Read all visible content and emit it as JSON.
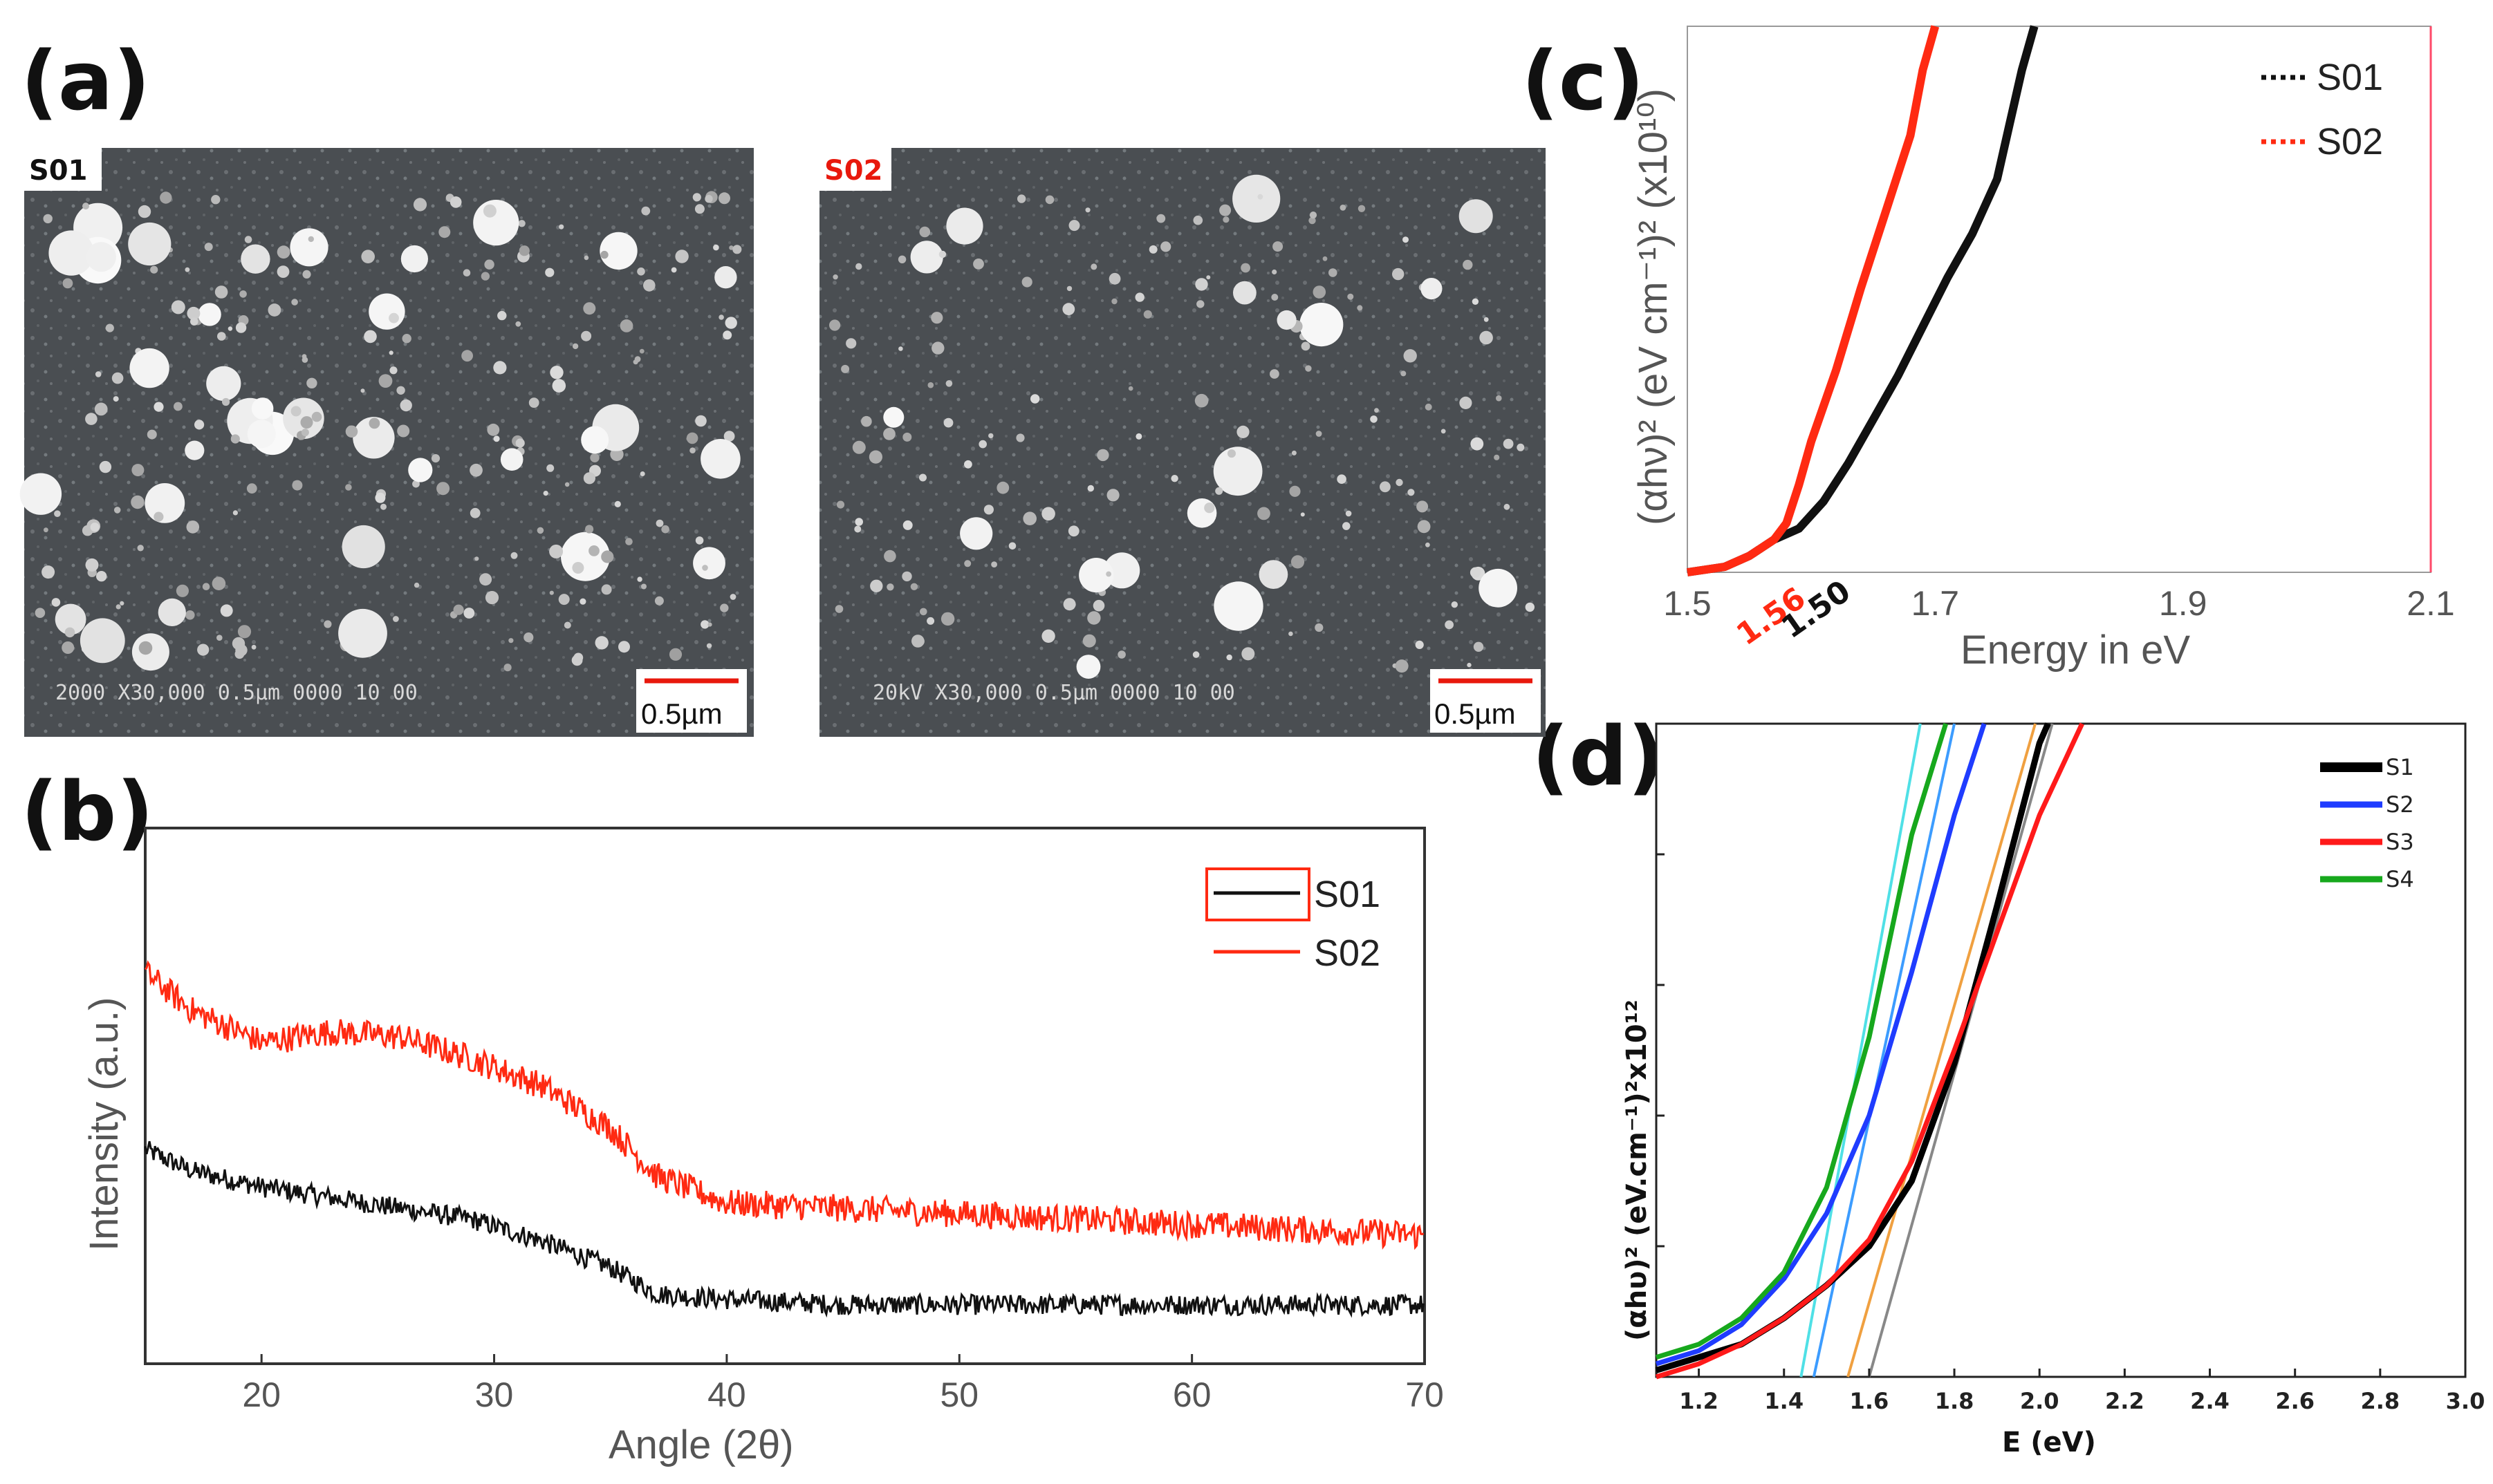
{
  "figure": {
    "panels": {
      "a": "(a)",
      "b": "(b)",
      "c": "(c)",
      "d": "(d)"
    }
  },
  "sem": {
    "left": {
      "tag": "S01",
      "info": "2000   X30,000   0.5µm   0000 10 00",
      "scale": "0.5µm"
    },
    "right": {
      "tag": "S02",
      "info": "20kV   X30,000   0.5µm   0000 10 00",
      "scale": "0.5µm"
    }
  },
  "chart_data": [
    {
      "panel": "b",
      "type": "line",
      "title": "",
      "xlabel": "Angle (2θ)",
      "ylabel": "Intensity (a.u.)",
      "xlim": [
        15,
        70
      ],
      "ylim": [
        0,
        100
      ],
      "xticks": [
        20,
        30,
        40,
        50,
        60,
        70
      ],
      "legend": "top-right",
      "series": [
        {
          "name": "S01",
          "color": "#111111",
          "x": [
            15,
            17,
            20,
            23,
            26,
            29,
            32,
            35,
            37,
            40,
            45,
            50,
            55,
            60,
            65,
            70
          ],
          "y": [
            40,
            36,
            33,
            31,
            29,
            27,
            23,
            18,
            13,
            12,
            11,
            11,
            11,
            11,
            11,
            11
          ]
        },
        {
          "name": "S02",
          "color": "#ff2a12",
          "x": [
            15,
            17,
            20,
            23,
            26,
            29,
            32,
            35,
            37,
            40,
            45,
            50,
            55,
            60,
            65,
            70
          ],
          "y": [
            73,
            66,
            60,
            62,
            61,
            57,
            52,
            44,
            35,
            30,
            29,
            28,
            27,
            26,
            25,
            24
          ]
        }
      ]
    },
    {
      "panel": "c",
      "type": "line",
      "title": "",
      "xlabel": "Energy in eV",
      "ylabel": "(αhν)² (eV cm⁻¹)²  (x10¹⁰)",
      "xlim": [
        1.5,
        2.1
      ],
      "ylim": [
        0,
        100
      ],
      "xticks": [
        "1.5",
        "1.7",
        "1.9",
        "2.1"
      ],
      "legend": "top-right",
      "bandgap_labels": [
        {
          "text": "1.56",
          "color": "#ff2a12"
        },
        {
          "text": "1.50",
          "color": "#111111"
        }
      ],
      "series": [
        {
          "name": "S01",
          "color": "#111111",
          "x": [
            1.5,
            1.53,
            1.55,
            1.57,
            1.59,
            1.61,
            1.63,
            1.65,
            1.67,
            1.69,
            1.71,
            1.73,
            1.75,
            1.76,
            1.77,
            1.78
          ],
          "y": [
            0,
            1,
            3,
            6,
            8,
            13,
            20,
            28,
            36,
            45,
            54,
            62,
            72,
            82,
            92,
            100
          ]
        },
        {
          "name": "S02",
          "color": "#ff2a12",
          "x": [
            1.5,
            1.53,
            1.55,
            1.57,
            1.58,
            1.59,
            1.6,
            1.62,
            1.64,
            1.66,
            1.68,
            1.69,
            1.7
          ],
          "y": [
            0,
            1,
            3,
            6,
            9,
            16,
            24,
            37,
            52,
            66,
            80,
            92,
            100
          ]
        }
      ]
    },
    {
      "panel": "d",
      "type": "line",
      "title": "",
      "xlabel": "E (eV)",
      "ylabel": "(αhυ)² (eV.cm⁻¹)²x10¹²",
      "xlim": [
        1.1,
        3.0
      ],
      "ylim": [
        0,
        100
      ],
      "xticks": [
        "1.2",
        "1.4",
        "1.6",
        "1.8",
        "2.0",
        "2.2",
        "2.4",
        "2.6",
        "2.8",
        "3.0"
      ],
      "legend": "top-right",
      "series": [
        {
          "name": "S1",
          "color": "#000000",
          "x": [
            1.1,
            1.2,
            1.3,
            1.4,
            1.5,
            1.6,
            1.7,
            1.8,
            1.9,
            2.0,
            2.02
          ],
          "y": [
            1,
            3,
            5,
            9,
            14,
            20,
            30,
            48,
            72,
            97,
            100
          ]
        },
        {
          "name": "S2",
          "color": "#1f3cff",
          "x": [
            1.1,
            1.2,
            1.3,
            1.4,
            1.5,
            1.6,
            1.7,
            1.8,
            1.87
          ],
          "y": [
            2,
            4,
            8,
            15,
            25,
            40,
            62,
            86,
            100
          ]
        },
        {
          "name": "S3",
          "color": "#ff1a1a",
          "x": [
            1.1,
            1.2,
            1.3,
            1.4,
            1.5,
            1.6,
            1.7,
            1.8,
            1.9,
            2.0,
            2.1
          ],
          "y": [
            0,
            2,
            5,
            9,
            14,
            21,
            33,
            50,
            68,
            86,
            100
          ]
        },
        {
          "name": "S4",
          "color": "#17a81d",
          "x": [
            1.1,
            1.2,
            1.3,
            1.4,
            1.5,
            1.6,
            1.7,
            1.78
          ],
          "y": [
            3,
            5,
            9,
            16,
            29,
            52,
            83,
            100
          ]
        }
      ],
      "fit_lines": [
        {
          "color": "#4fe0e6",
          "x": [
            1.44,
            1.72
          ],
          "y": [
            0,
            100
          ]
        },
        {
          "color": "#3c9cff",
          "x": [
            1.47,
            1.8
          ],
          "y": [
            0,
            100
          ]
        },
        {
          "color": "#f0a040",
          "x": [
            1.55,
            1.99
          ],
          "y": [
            0,
            100
          ]
        },
        {
          "color": "#888888",
          "x": [
            1.6,
            2.03
          ],
          "y": [
            0,
            100
          ]
        }
      ]
    }
  ]
}
